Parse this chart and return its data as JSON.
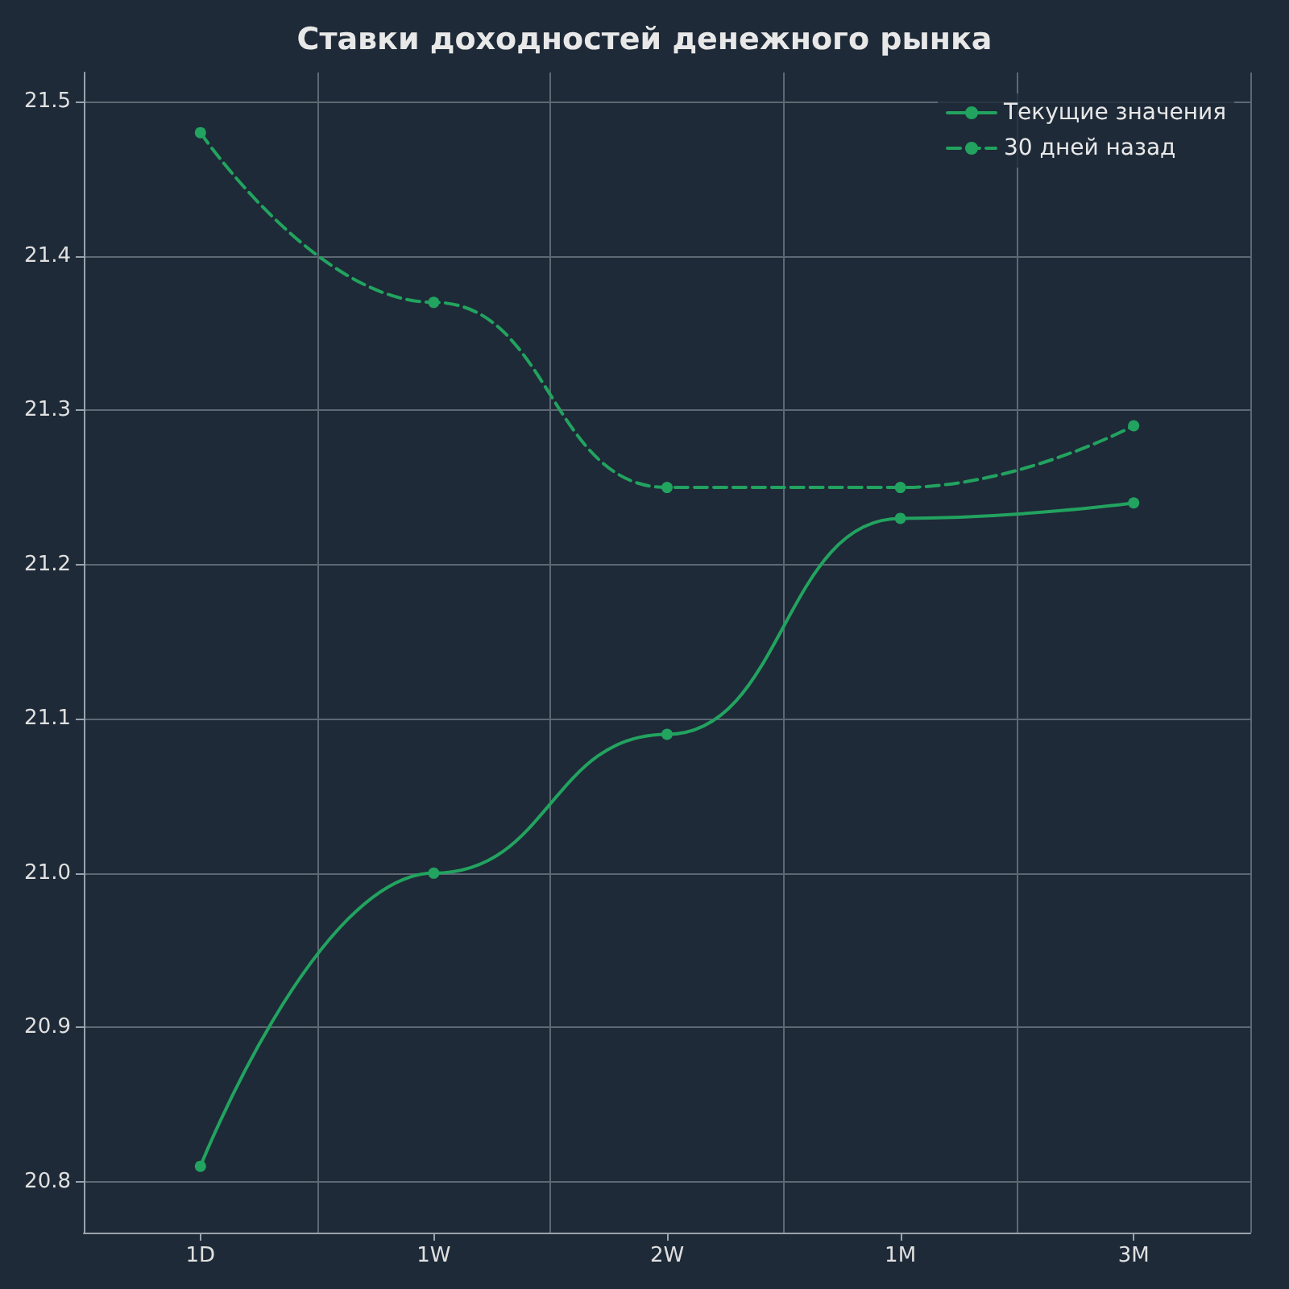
{
  "chart_data": {
    "type": "line",
    "title": "Ставки доходностей денежного рынка",
    "categories": [
      "1D",
      "1W",
      "2W",
      "1M",
      "3M"
    ],
    "series": [
      {
        "name": "Текущие значения",
        "color": "#22a35f",
        "line_style": "solid",
        "values": [
          20.81,
          21.0,
          21.09,
          21.23,
          21.24
        ]
      },
      {
        "name": "30 дней назад",
        "color": "#22a35f",
        "line_style": "dashed",
        "values": [
          21.48,
          21.37,
          21.25,
          21.25,
          21.29
        ]
      }
    ],
    "ylim": [
      20.767,
      21.519
    ],
    "yticks": [
      {
        "value": 20.8,
        "label": "20.8"
      },
      {
        "value": 20.9,
        "label": "20.9"
      },
      {
        "value": 21.0,
        "label": "21.0"
      },
      {
        "value": 21.1,
        "label": "21.1"
      },
      {
        "value": 21.2,
        "label": "21.2"
      },
      {
        "value": 21.3,
        "label": "21.3"
      },
      {
        "value": 21.4,
        "label": "21.4"
      },
      {
        "value": 21.5,
        "label": "21.5"
      }
    ],
    "grid": true,
    "legend": "top right",
    "marker": "circle"
  }
}
